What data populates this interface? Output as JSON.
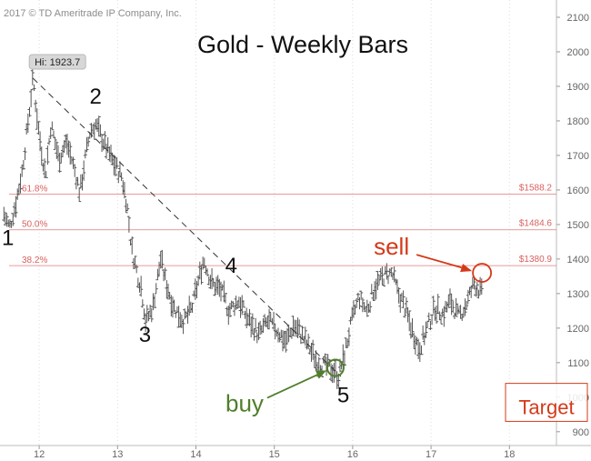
{
  "chart_data": {
    "type": "bar",
    "title": "Gold - Weekly Bars",
    "copyright": "2017 © TD Ameritrade IP Company, Inc.",
    "xlim": [
      11.5,
      18.6
    ],
    "ylim": [
      860,
      2150
    ],
    "x_ticks": [
      {
        "value": 12,
        "label": "12"
      },
      {
        "value": 13,
        "label": "13"
      },
      {
        "value": 14,
        "label": "14"
      },
      {
        "value": 15,
        "label": "15"
      },
      {
        "value": 16,
        "label": "16"
      },
      {
        "value": 17,
        "label": "17"
      },
      {
        "value": 18,
        "label": "18"
      }
    ],
    "y_ticks": [
      {
        "value": 900,
        "label": "900"
      },
      {
        "value": 1000,
        "label": "1000"
      },
      {
        "value": 1100,
        "label": "1100"
      },
      {
        "value": 1200,
        "label": "1200"
      },
      {
        "value": 1300,
        "label": "1300"
      },
      {
        "value": 1400,
        "label": "1400"
      },
      {
        "value": 1500,
        "label": "1500"
      },
      {
        "value": 1600,
        "label": "1600"
      },
      {
        "value": 1700,
        "label": "1700"
      },
      {
        "value": 1800,
        "label": "1800"
      },
      {
        "value": 1900,
        "label": "1900"
      },
      {
        "value": 2000,
        "label": "2000"
      },
      {
        "value": 2100,
        "label": "2100"
      }
    ],
    "price_path": [
      [
        11.55,
        1530
      ],
      [
        11.62,
        1490
      ],
      [
        11.7,
        1560
      ],
      [
        11.78,
        1650
      ],
      [
        11.85,
        1780
      ],
      [
        11.92,
        1923.7
      ],
      [
        12.0,
        1760
      ],
      [
        12.08,
        1640
      ],
      [
        12.15,
        1790
      ],
      [
        12.25,
        1690
      ],
      [
        12.35,
        1740
      ],
      [
        12.45,
        1660
      ],
      [
        12.52,
        1590
      ],
      [
        12.58,
        1680
      ],
      [
        12.65,
        1770
      ],
      [
        12.72,
        1790
      ],
      [
        12.82,
        1740
      ],
      [
        12.92,
        1690
      ],
      [
        13.05,
        1640
      ],
      [
        13.12,
        1560
      ],
      [
        13.18,
        1430
      ],
      [
        13.25,
        1360
      ],
      [
        13.3,
        1320
      ],
      [
        13.36,
        1220
      ],
      [
        13.45,
        1260
      ],
      [
        13.55,
        1400
      ],
      [
        13.62,
        1330
      ],
      [
        13.72,
        1260
      ],
      [
        13.85,
        1220
      ],
      [
        13.95,
        1260
      ],
      [
        14.1,
        1400
      ],
      [
        14.2,
        1330
      ],
      [
        14.32,
        1310
      ],
      [
        14.42,
        1250
      ],
      [
        14.55,
        1280
      ],
      [
        14.65,
        1230
      ],
      [
        14.8,
        1180
      ],
      [
        14.92,
        1220
      ],
      [
        15.05,
        1190
      ],
      [
        15.15,
        1160
      ],
      [
        15.25,
        1210
      ],
      [
        15.35,
        1180
      ],
      [
        15.45,
        1140
      ],
      [
        15.55,
        1100
      ],
      [
        15.65,
        1090
      ],
      [
        15.75,
        1080
      ],
      [
        15.82,
        1060
      ],
      [
        15.9,
        1130
      ],
      [
        16.0,
        1230
      ],
      [
        16.08,
        1290
      ],
      [
        16.18,
        1250
      ],
      [
        16.28,
        1320
      ],
      [
        16.4,
        1350
      ],
      [
        16.5,
        1360
      ],
      [
        16.58,
        1300
      ],
      [
        16.65,
        1270
      ],
      [
        16.75,
        1200
      ],
      [
        16.85,
        1140
      ],
      [
        16.95,
        1200
      ],
      [
        17.05,
        1260
      ],
      [
        17.15,
        1240
      ],
      [
        17.25,
        1280
      ],
      [
        17.35,
        1230
      ],
      [
        17.45,
        1270
      ],
      [
        17.55,
        1330
      ],
      [
        17.65,
        1300
      ]
    ],
    "annotations": {
      "high_label": "Hi: 1923.7",
      "high_point": {
        "x": 11.92,
        "y": 1923.7
      },
      "trendline": [
        {
          "x": 11.92,
          "y": 1923.7
        },
        {
          "x": 15.85,
          "y": 1060
        }
      ],
      "fib_levels": [
        {
          "pct": "61.8%",
          "price": "$1588.2",
          "value": 1588.2
        },
        {
          "pct": "50.0%",
          "price": "$1484.6",
          "value": 1484.6
        },
        {
          "pct": "38.2%",
          "price": "$1380.9",
          "value": 1380.9
        }
      ],
      "waves": [
        {
          "label": "1",
          "x": 11.6,
          "y": 1440
        },
        {
          "label": "2",
          "x": 12.72,
          "y": 1850
        },
        {
          "label": "3",
          "x": 13.35,
          "y": 1160
        },
        {
          "label": "4",
          "x": 14.45,
          "y": 1360
        },
        {
          "label": "5",
          "x": 15.88,
          "y": 985
        }
      ],
      "sell": {
        "label": "sell",
        "x": 17.65,
        "y": 1360
      },
      "buy": {
        "label": "buy",
        "x": 15.78,
        "y": 1085
      },
      "target": {
        "label": "Target",
        "y_from": 1040,
        "y_to": 930
      }
    }
  },
  "colors": {
    "bars": "#555555",
    "fib": "#e07b7b",
    "sell": "#d43a1a",
    "buy": "#4f7f2a",
    "trendline": "#333333",
    "grid": "#dddddd"
  }
}
